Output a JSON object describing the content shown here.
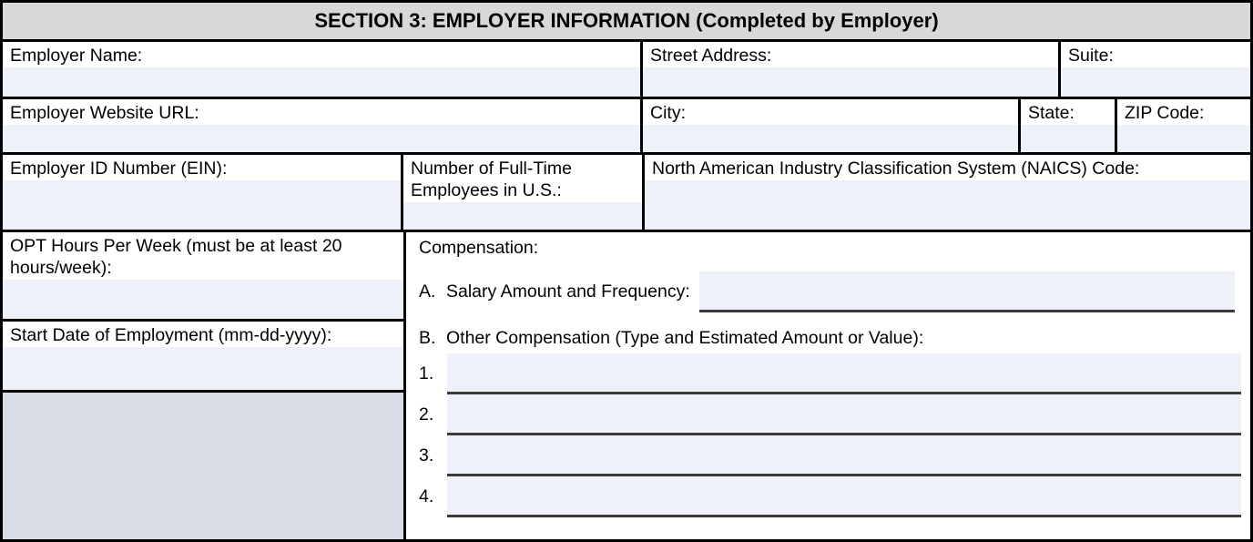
{
  "header": {
    "title": "SECTION 3: EMPLOYER INFORMATION (Completed by Employer)"
  },
  "row1": {
    "employer_name_label": "Employer Name:",
    "street_address_label": "Street Address:",
    "suite_label": "Suite:"
  },
  "row2": {
    "website_label": "Employer Website URL:",
    "city_label": "City:",
    "state_label": "State:",
    "zip_label": "ZIP Code:"
  },
  "row3": {
    "ein_label": "Employer ID Number (EIN):",
    "ft_employees_label": "Number of Full-Time Employees in U.S.:",
    "naics_label": "North American Industry Classification System (NAICS) Code:"
  },
  "left": {
    "opt_hours_label": "OPT Hours Per Week (must be at least 20 hours/week):",
    "start_date_label": "Start Date of Employment (mm-dd-yyyy):"
  },
  "comp": {
    "title": "Compensation:",
    "a_prefix": "A.",
    "a_label": "Salary Amount and Frequency:",
    "b_prefix": "B.",
    "b_label": "Other Compensation (Type and Estimated Amount or Value):",
    "lines": [
      {
        "number": "1."
      },
      {
        "number": "2."
      },
      {
        "number": "3."
      },
      {
        "number": "4."
      }
    ]
  },
  "values": {
    "employer_name": "",
    "street_address": "",
    "suite": "",
    "website": "",
    "city": "",
    "state": "",
    "zip": "",
    "ein": "",
    "ft_employees": "",
    "naics": "",
    "opt_hours": "",
    "start_date": "",
    "salary": "",
    "other_1": "",
    "other_2": "",
    "other_3": "",
    "other_4": ""
  },
  "colors": {
    "field_highlight": "#EFF1FA",
    "header_bg": "#D8D8D8",
    "shaded_area": "#D9DBE6",
    "field_underline": "#3A3A3A",
    "border": "#000000"
  }
}
